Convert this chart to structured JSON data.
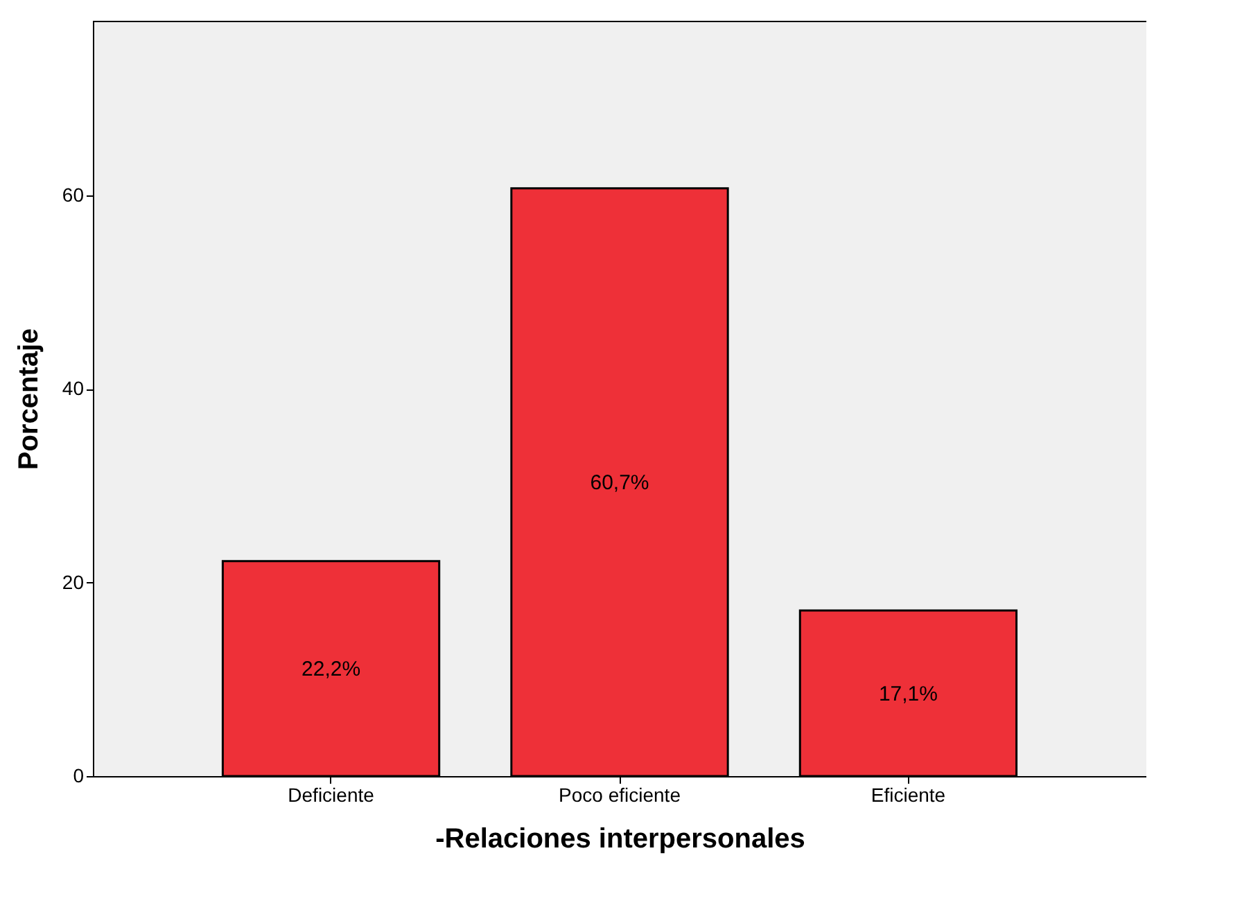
{
  "chart_data": {
    "type": "bar",
    "xlabel": "-Relaciones interpersonales",
    "ylabel": "Porcentaje",
    "categories": [
      "Deficiente",
      "Poco eficiente",
      "Eficiente"
    ],
    "values": [
      22.2,
      60.7,
      17.1
    ],
    "color": "#ee3038",
    "value_labels": [
      "22,2%",
      "60,7%",
      "17,1%"
    ],
    "ylim": [
      0,
      78
    ],
    "yticks": [
      0,
      20,
      40,
      60
    ],
    "grid": false
  }
}
